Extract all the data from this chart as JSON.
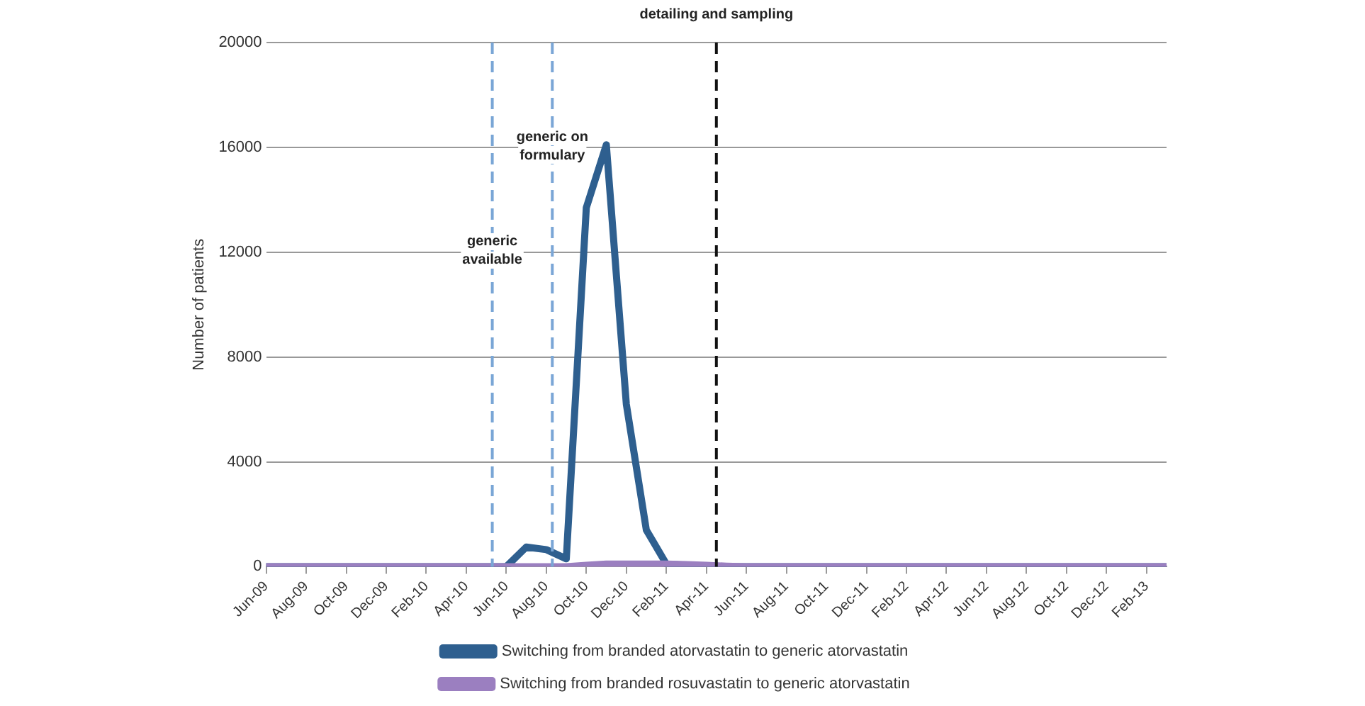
{
  "chart_data": {
    "type": "line",
    "ylabel": "Number of patients",
    "x": [
      "2009-06",
      "2009-07",
      "2009-08",
      "2009-09",
      "2009-10",
      "2009-11",
      "2009-12",
      "2010-01",
      "2010-02",
      "2010-03",
      "2010-04",
      "2010-05",
      "2010-06",
      "2010-07",
      "2010-08",
      "2010-09",
      "2010-10",
      "2010-11",
      "2010-12",
      "2011-01",
      "2011-02",
      "2011-03",
      "2011-04",
      "2011-05",
      "2011-06",
      "2011-07",
      "2011-08",
      "2011-09",
      "2011-10",
      "2011-11",
      "2011-12",
      "2012-01",
      "2012-02",
      "2012-03",
      "2012-04",
      "2012-05",
      "2012-06",
      "2012-07",
      "2012-08",
      "2012-09",
      "2012-10",
      "2012-11",
      "2012-12",
      "2013-01",
      "2013-02",
      "2013-03"
    ],
    "series": [
      {
        "name": "Switching from branded atorvastatin to generic atorvastatin",
        "color": "#2e5f8f",
        "values": [
          0,
          0,
          0,
          0,
          0,
          0,
          0,
          0,
          0,
          0,
          0,
          0,
          0,
          750,
          650,
          300,
          13700,
          16100,
          6200,
          1400,
          100,
          50,
          0,
          0,
          0,
          0,
          0,
          0,
          0,
          0,
          0,
          0,
          0,
          0,
          0,
          0,
          0,
          0,
          0,
          0,
          0,
          0,
          0,
          0,
          0,
          0
        ]
      },
      {
        "name": "Switching from branded rosuvastatin to generic atorvastatin",
        "color": "#9b7fc0",
        "values": [
          0,
          0,
          0,
          0,
          0,
          0,
          0,
          0,
          0,
          0,
          0,
          0,
          0,
          0,
          0,
          0,
          50,
          100,
          100,
          100,
          100,
          80,
          50,
          20,
          0,
          0,
          0,
          0,
          0,
          0,
          0,
          0,
          0,
          0,
          0,
          0,
          0,
          0,
          0,
          0,
          0,
          0,
          0,
          0,
          0,
          0
        ]
      }
    ],
    "xlim": [
      "2009-06",
      "2013-03"
    ],
    "xticks": [
      {
        "value": "2009-06",
        "label": "Jun-09"
      },
      {
        "value": "2009-08",
        "label": "Aug-09"
      },
      {
        "value": "2009-10",
        "label": "Oct-09"
      },
      {
        "value": "2009-12",
        "label": "Dec-09"
      },
      {
        "value": "2010-02",
        "label": "Feb-10"
      },
      {
        "value": "2010-04",
        "label": "Apr-10"
      },
      {
        "value": "2010-06",
        "label": "Jun-10"
      },
      {
        "value": "2010-08",
        "label": "Aug-10"
      },
      {
        "value": "2010-10",
        "label": "Oct-10"
      },
      {
        "value": "2010-12",
        "label": "Dec-10"
      },
      {
        "value": "2011-02",
        "label": "Feb-11"
      },
      {
        "value": "2011-04",
        "label": "Apr-11"
      },
      {
        "value": "2011-06",
        "label": "Jun-11"
      },
      {
        "value": "2011-08",
        "label": "Aug-11"
      },
      {
        "value": "2011-10",
        "label": "Oct-11"
      },
      {
        "value": "2011-12",
        "label": "Dec-11"
      },
      {
        "value": "2012-02",
        "label": "Feb-12"
      },
      {
        "value": "2012-04",
        "label": "Apr-12"
      },
      {
        "value": "2012-06",
        "label": "Jun-12"
      },
      {
        "value": "2012-08",
        "label": "Aug-12"
      },
      {
        "value": "2012-10",
        "label": "Oct-12"
      },
      {
        "value": "2012-12",
        "label": "Dec-12"
      },
      {
        "value": "2013-02",
        "label": "Feb-13"
      }
    ],
    "ylim": [
      0,
      20000
    ],
    "yticks": [
      0,
      4000,
      8000,
      12000,
      16000,
      20000
    ],
    "ref_lines": [
      {
        "axis": "x",
        "value": "2010-05-10",
        "label": "generic available",
        "color": "#7aa6d6",
        "line_style": "dashed"
      },
      {
        "axis": "x",
        "value": "2010-08-10",
        "label": "generic on formulary",
        "color": "#7aa6d6",
        "line_style": "dashed"
      },
      {
        "axis": "x",
        "value": "2011-04-16",
        "label": "detailing and sampling",
        "color": "#111111",
        "line_style": "dashed"
      }
    ],
    "grid": "y",
    "legend": "bottom",
    "marker": "none",
    "line_style": "solid"
  }
}
